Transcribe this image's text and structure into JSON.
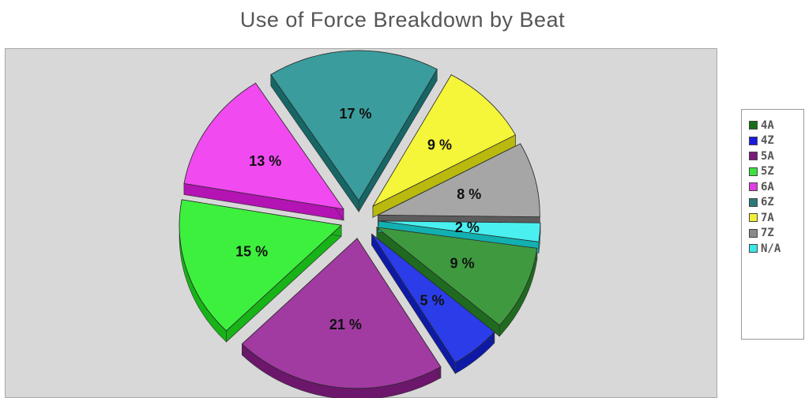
{
  "chart_data": {
    "type": "pie",
    "title": "Use of Force Breakdown by Beat",
    "slices": [
      {
        "name": "4A",
        "value": 9,
        "label": "9 %",
        "color": "#3f9a3f",
        "dark": "#1f6a1f"
      },
      {
        "name": "4Z",
        "value": 5,
        "label": "5 %",
        "color": "#2a3de8",
        "dark": "#0e1aa6"
      },
      {
        "name": "5A",
        "value": 21,
        "label": "21 %",
        "color": "#a13aa1",
        "dark": "#6c166c"
      },
      {
        "name": "5Z",
        "value": 15,
        "label": "15 %",
        "color": "#3ef03e",
        "dark": "#17b317"
      },
      {
        "name": "6A",
        "value": 13,
        "label": "13 %",
        "color": "#f04af0",
        "dark": "#b314b3"
      },
      {
        "name": "6Z",
        "value": 17,
        "label": "17 %",
        "color": "#3a9c9c",
        "dark": "#166666"
      },
      {
        "name": "7A",
        "value": 9,
        "label": "9 %",
        "color": "#f5f53a",
        "dark": "#b9b90f"
      },
      {
        "name": "7Z",
        "value": 8,
        "label": "8 %",
        "color": "#a6a6a6",
        "dark": "#5c5c5c"
      },
      {
        "name": "N/A",
        "value": 2,
        "label": "2 %",
        "color": "#4af0f0",
        "dark": "#12b0b0"
      }
    ],
    "legend_placement": "right"
  },
  "legend": {
    "items": [
      {
        "label": "4A",
        "color": "#157015"
      },
      {
        "label": "4Z",
        "color": "#1a1ae0"
      },
      {
        "label": "5A",
        "color": "#7a1a7a"
      },
      {
        "label": "5Z",
        "color": "#3ee03e"
      },
      {
        "label": "6A",
        "color": "#e03ee0"
      },
      {
        "label": "6Z",
        "color": "#2a7a7a"
      },
      {
        "label": "7A",
        "color": "#f0f03a"
      },
      {
        "label": "7Z",
        "color": "#8a8a8a"
      },
      {
        "label": "N/A",
        "color": "#3ae8e8"
      }
    ]
  }
}
